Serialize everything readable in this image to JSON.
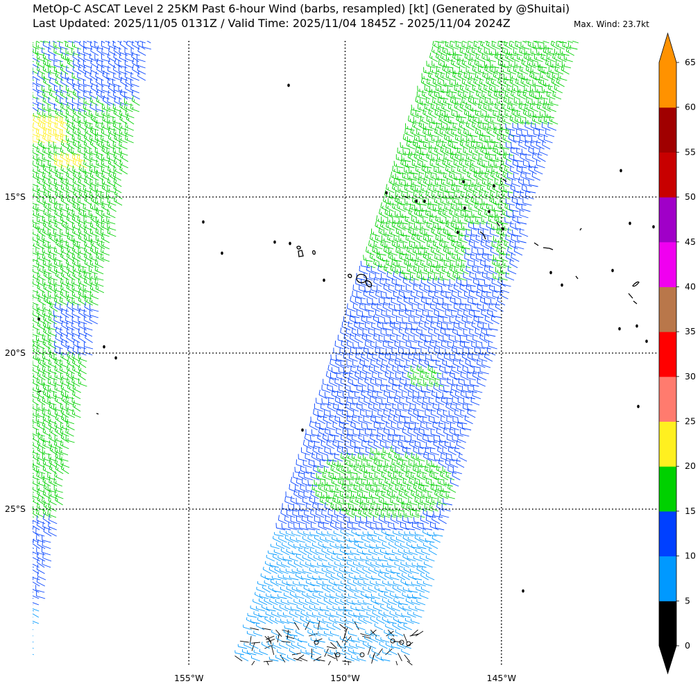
{
  "header": {
    "title_line1": "MetOp-C ASCAT Level 2 25KM Past 6-hour Wind (barbs, resampled) [kt] (Generated by @Shuitai)",
    "title_line2": "Last Updated: 2025/11/05 0131Z / Valid Time: 2025/11/04 1845Z - 2025/11/04 2024Z",
    "max_wind": "Max. Wind: 23.7kt"
  },
  "map": {
    "lat_labels": [
      "15°S",
      "20°S",
      "25°S"
    ],
    "lon_labels": [
      "155°W",
      "150°W",
      "145°W"
    ],
    "lat_lines": [
      -15,
      -20,
      -25
    ],
    "lon_lines": [
      -155,
      -150,
      -145
    ],
    "lat_range": [
      -30,
      -10
    ],
    "lon_range": [
      -160,
      -140
    ],
    "grid": "dotted",
    "islands": "French Polynesia (Society, Tuamotu, Austral Islands)"
  },
  "colorbar": {
    "labels": [
      "0",
      "5",
      "10",
      "15",
      "20",
      "25",
      "30",
      "35",
      "40",
      "45",
      "50",
      "55",
      "60",
      "65"
    ],
    "bins": [
      {
        "from": 0,
        "to": 5,
        "color": "#000000"
      },
      {
        "from": 5,
        "to": 10,
        "color": "#0099ff"
      },
      {
        "from": 10,
        "to": 15,
        "color": "#0040ff"
      },
      {
        "from": 15,
        "to": 20,
        "color": "#00d100"
      },
      {
        "from": 20,
        "to": 25,
        "color": "#fff020"
      },
      {
        "from": 25,
        "to": 30,
        "color": "#ff7b6e"
      },
      {
        "from": 30,
        "to": 35,
        "color": "#ff0000"
      },
      {
        "from": 35,
        "to": 40,
        "color": "#b9774a"
      },
      {
        "from": 40,
        "to": 45,
        "color": "#f000f0"
      },
      {
        "from": 45,
        "to": 50,
        "color": "#a000c8"
      },
      {
        "from": 50,
        "to": 55,
        "color": "#c80000"
      },
      {
        "from": 55,
        "to": 60,
        "color": "#a00000"
      },
      {
        "from": 60,
        "to": 65,
        "color": "#ff9200"
      }
    ],
    "extend_low_color": "#000000",
    "extend_high_color": "#ff9200"
  }
}
